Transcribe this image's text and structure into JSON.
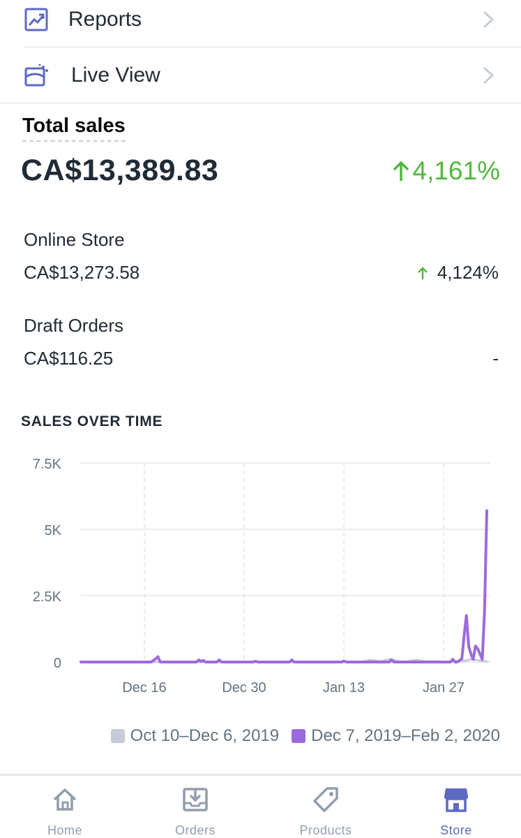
{
  "menu": {
    "reports_label": "Reports",
    "reports_icon": "reports-chart-icon",
    "live_view_label": "Live View",
    "live_view_icon": "live-view-icon"
  },
  "total_sales": {
    "title": "Total sales",
    "value": "CA$13,389.83",
    "change": "4,161%",
    "change_direction": "up",
    "change_color": "#50b83c"
  },
  "channels": [
    {
      "name": "Online Store",
      "value": "CA$13,273.58",
      "change": "4,124%",
      "change_direction": "up"
    },
    {
      "name": "Draft Orders",
      "value": "CA$116.25",
      "change": "-"
    }
  ],
  "sales_over_time": {
    "title": "SALES OVER TIME"
  },
  "chart_data": {
    "type": "line",
    "y_ticks": [
      "7.5K",
      "5K",
      "2.5K",
      "0"
    ],
    "x_ticks": [
      "Dec 16",
      "Dec 30",
      "Jan 13",
      "Jan 27"
    ],
    "ylim": [
      0,
      7500
    ],
    "grid": true,
    "legend_position": "bottom-right",
    "series": [
      {
        "name": "Oct 10–Dec 6, 2019",
        "color": "#c4cdd5",
        "values": [
          0,
          0,
          0,
          0,
          0,
          0,
          0,
          0,
          0,
          0,
          0,
          0,
          0,
          0,
          0,
          0,
          0,
          0,
          0,
          0,
          0,
          0,
          0,
          0,
          0,
          0,
          0,
          0,
          0,
          0,
          0,
          0,
          0,
          0,
          0,
          0,
          0,
          0,
          0,
          0,
          0,
          0,
          0,
          0,
          0,
          0,
          0,
          0,
          0,
          0,
          0,
          0,
          0,
          30,
          80,
          60,
          20,
          70,
          120,
          50,
          10,
          20,
          60,
          80,
          40,
          20,
          30,
          20,
          10,
          20,
          30,
          40,
          50,
          100,
          80,
          40,
          20
        ]
      },
      {
        "name": "Dec 7, 2019–Feb 2, 2020",
        "color": "#9c6ade",
        "values": [
          0,
          0,
          0,
          0,
          0,
          0,
          0,
          0,
          0,
          0,
          0,
          0,
          0,
          0,
          0,
          0,
          0,
          0,
          0,
          0,
          0,
          0,
          0,
          0,
          0,
          0,
          0,
          0,
          0,
          0,
          0,
          0,
          60,
          120,
          200,
          0,
          0,
          0,
          0,
          0,
          0,
          0,
          0,
          0,
          0,
          0,
          0,
          0,
          0,
          0,
          0,
          0,
          80,
          20,
          60,
          0,
          0,
          0,
          0,
          0,
          0,
          80,
          0,
          0,
          0,
          0,
          0,
          0,
          0,
          0,
          0,
          0,
          0,
          0,
          0,
          0,
          0,
          30,
          0,
          0,
          0,
          0,
          0,
          0,
          0,
          0,
          0,
          0,
          0,
          0,
          0,
          0,
          0,
          80,
          0,
          0,
          0,
          0,
          0,
          0,
          0,
          0,
          0,
          0,
          0,
          0,
          0,
          0,
          0,
          0,
          0,
          0,
          0,
          0,
          0,
          0,
          40,
          0,
          0,
          0,
          0,
          0,
          0,
          0,
          0,
          0,
          0,
          0,
          0,
          0,
          0,
          0,
          0,
          0,
          0,
          0,
          0,
          80,
          0,
          0,
          0,
          0,
          0,
          0,
          0,
          0,
          0,
          0,
          0,
          0,
          0,
          0,
          0,
          0,
          0,
          0,
          0,
          0,
          0,
          0,
          0,
          0,
          0,
          0,
          100,
          0,
          0,
          60,
          120,
          1000,
          1750,
          600,
          300,
          100,
          600,
          500,
          300,
          100,
          1900,
          5700
        ]
      }
    ]
  },
  "tabs": [
    {
      "label": "Home",
      "icon": "home-icon",
      "active": false
    },
    {
      "label": "Orders",
      "icon": "orders-inbox-icon",
      "active": false
    },
    {
      "label": "Products",
      "icon": "products-tag-icon",
      "active": false
    },
    {
      "label": "Store",
      "icon": "store-icon",
      "active": true
    }
  ],
  "colors": {
    "accent": "#5c6ac4",
    "positive": "#50b83c",
    "purple_line": "#9c6ade",
    "gray_line": "#c4cdd5",
    "inactive_tab": "#919eab"
  }
}
